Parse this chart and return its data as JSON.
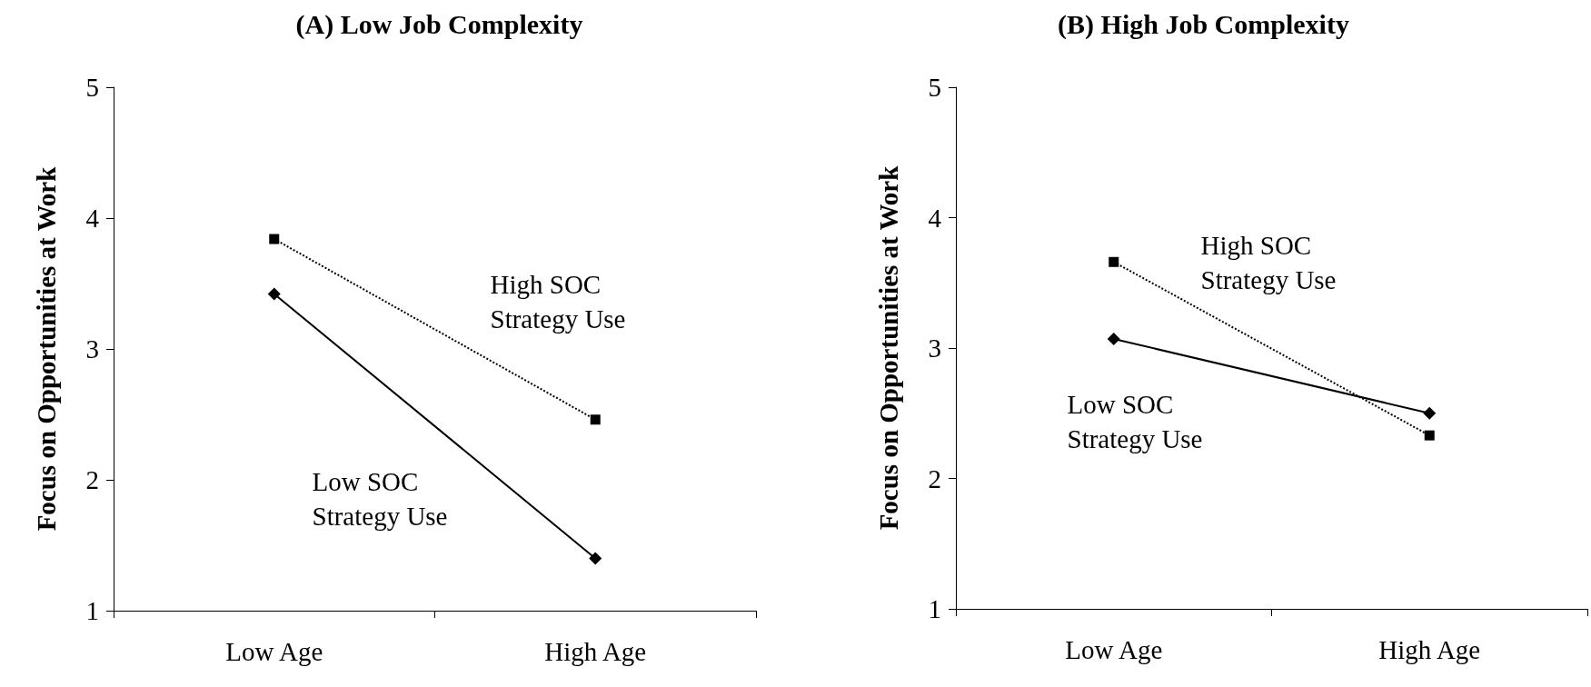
{
  "chart_data": [
    {
      "type": "line",
      "title": "(A) Low Job Complexity",
      "ylabel": "Focus on Opportunities at Work",
      "categories": [
        "Low Age",
        "High Age"
      ],
      "series": [
        {
          "name": "High SOC\nStrategy Use",
          "color": "#000000",
          "values": [
            3.84,
            2.46
          ],
          "marker": "square",
          "line_style": "dotted"
        },
        {
          "name": "Low SOC\nStrategy Use",
          "color": "#000000",
          "values": [
            3.42,
            1.4
          ],
          "marker": "diamond",
          "line_style": "solid"
        }
      ],
      "ylim": [
        1,
        5
      ],
      "yticks": [
        1,
        2,
        3,
        4,
        5
      ],
      "grid": false,
      "legend": false
    },
    {
      "type": "line",
      "title": "(B) High Job Complexity",
      "ylabel": "Focus on Opportunities at Work",
      "categories": [
        "Low Age",
        "High Age"
      ],
      "series": [
        {
          "name": "High SOC\nStrategy Use",
          "color": "#000000",
          "values": [
            3.66,
            2.33
          ],
          "marker": "square",
          "line_style": "dotted"
        },
        {
          "name": "Low SOC\nStrategy Use",
          "color": "#000000",
          "values": [
            3.07,
            2.5
          ],
          "marker": "diamond",
          "line_style": "solid"
        }
      ],
      "ylim": [
        1,
        5
      ],
      "yticks": [
        1,
        2,
        3,
        4,
        5
      ],
      "grid": false,
      "legend": false
    }
  ]
}
